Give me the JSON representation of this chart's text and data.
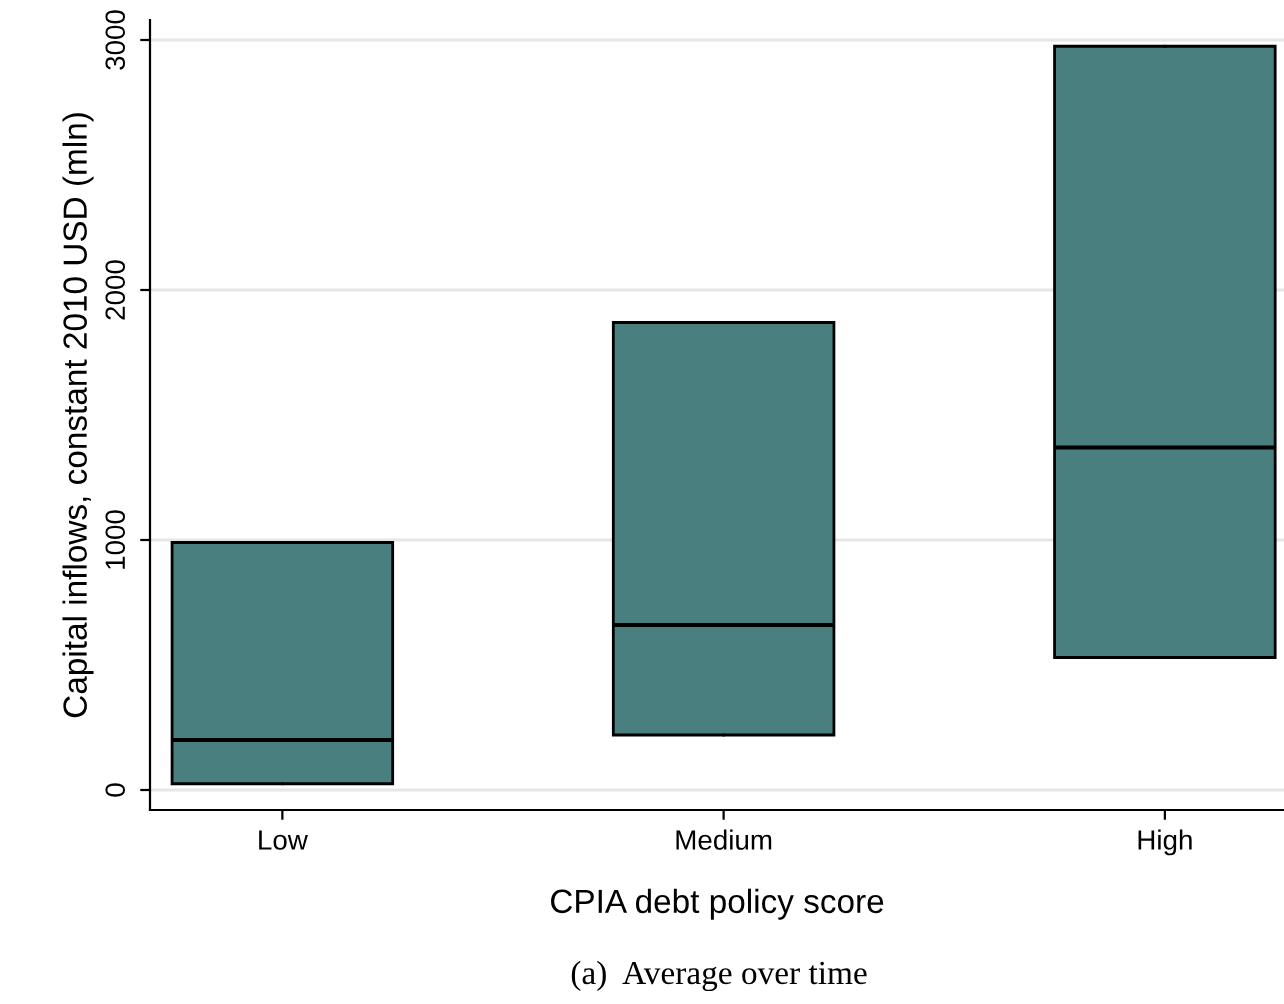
{
  "chart_data": {
    "type": "box",
    "xlabel": "CPIA debt policy score",
    "ylabel": "Capital inflows, constant 2010 USD (mln)",
    "categories": [
      "Low",
      "Medium",
      "High"
    ],
    "boxes": [
      {
        "low": 25,
        "q1": 25,
        "median": 200,
        "q3": 990,
        "high": 990
      },
      {
        "low": 220,
        "q1": 220,
        "median": 660,
        "q3": 1870,
        "high": 1870
      },
      {
        "low": 530,
        "q1": 530,
        "median": 1370,
        "q3": 2975,
        "high": 2975
      }
    ],
    "color": "#4a7f7f",
    "ylim": [
      -80,
      3080
    ],
    "yticks": [
      0,
      1000,
      2000,
      3000
    ],
    "grid": "y",
    "annotations": [
      "(a)  Average over time"
    ]
  }
}
